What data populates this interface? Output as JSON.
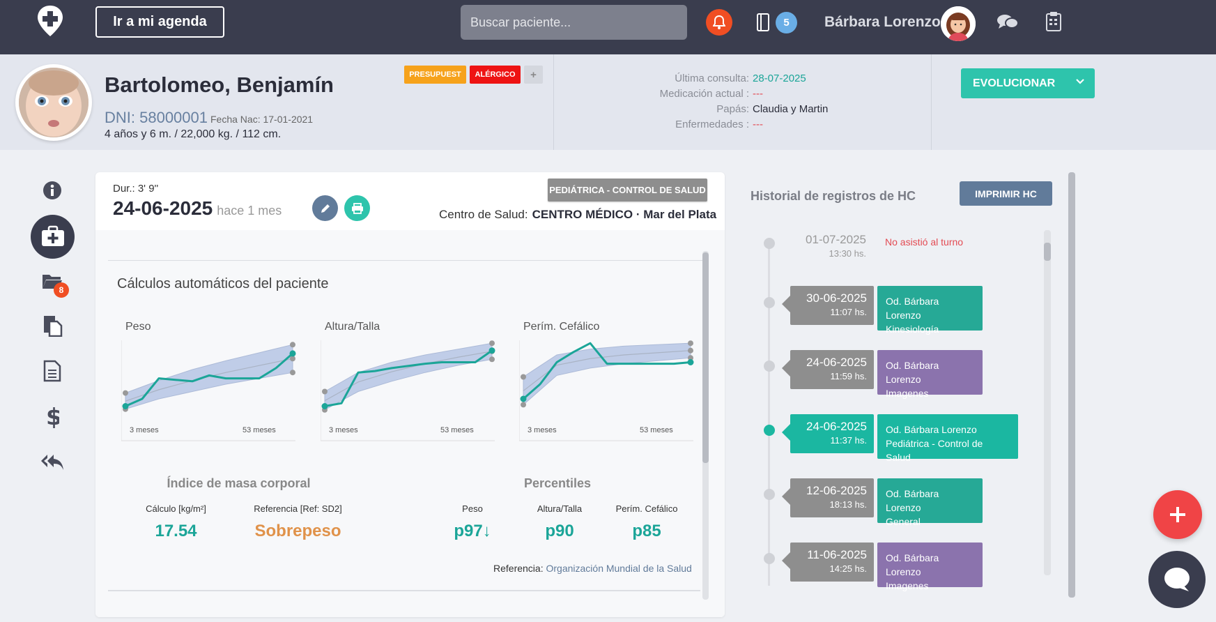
{
  "topbar": {
    "agenda_label": "Ir a mi agenda",
    "search_placeholder": "Buscar paciente...",
    "notif_count": "5",
    "user_name": "Bárbara Lorenzo"
  },
  "patient": {
    "name": "Bartolomeo, Benjamín",
    "dni": "DNI: 58000001",
    "birth": "Fecha Nac: 17-01-2021",
    "stats": "4 años y 6 m. / 22,000 kg. / 112 cm.",
    "tags": [
      "PRESUPUEST",
      "ALÉRGICO",
      "+"
    ],
    "info_labels": [
      "Última consulta:",
      "Medicación actual :",
      "Papás:",
      "Enfermedades :"
    ],
    "info_values": [
      "28-07-2025",
      "---",
      "Claudia y Martin",
      "---"
    ],
    "evolve_label": "EVOLUCIONAR"
  },
  "sidebar": {
    "folder_badge": "8"
  },
  "consult": {
    "duration": "Dur.: 3' 9''",
    "date": "24-06-2025",
    "ago": "hace 1 mes",
    "type_tag": "PEDIÁTRICA - CONTROL DE SALUD",
    "center_label": "Centro de Salud:",
    "center_name": "CENTRO MÉDICO · Mar del Plata",
    "calc_title": "Cálculos automáticos del paciente"
  },
  "chart_data": [
    {
      "type": "line",
      "title": "Peso",
      "x_start_label": "3 meses",
      "x_end_label": "53 meses",
      "band_low": [
        0.06,
        0.2,
        0.3,
        0.4,
        0.48,
        0.56
      ],
      "band_high": [
        0.28,
        0.45,
        0.6,
        0.72,
        0.83,
        0.94
      ],
      "series": [
        0.1,
        0.2,
        0.48,
        0.46,
        0.44,
        0.52,
        0.48,
        0.48,
        0.48,
        0.62,
        0.82
      ]
    },
    {
      "type": "line",
      "title": "Altura/Talla",
      "x_start_label": "3 meses",
      "x_end_label": "53 meses",
      "band_low": [
        0.05,
        0.3,
        0.44,
        0.56,
        0.66,
        0.74
      ],
      "band_high": [
        0.3,
        0.56,
        0.7,
        0.8,
        0.88,
        0.96
      ],
      "series": [
        0.1,
        0.14,
        0.56,
        0.58,
        0.62,
        0.65,
        0.68,
        0.7,
        0.7,
        0.7,
        0.86
      ]
    },
    {
      "type": "line",
      "title": "Perím. Cefálico",
      "x_start_label": "3 meses",
      "x_end_label": "53 meses",
      "band_low": [
        0.12,
        0.52,
        0.62,
        0.68,
        0.72,
        0.76
      ],
      "band_high": [
        0.5,
        0.8,
        0.88,
        0.92,
        0.94,
        0.96
      ],
      "series": [
        0.2,
        0.4,
        0.7,
        0.84,
        0.96,
        0.68,
        0.68,
        0.68,
        0.68,
        0.68,
        0.7
      ]
    }
  ],
  "imc": {
    "title": "Índice de masa corporal",
    "calc_label": "Cálculo [kg/m²]",
    "calc_value": "17.54",
    "ref_label": "Referencia [Ref: SD2]",
    "ref_value": "Sobrepeso"
  },
  "percentiles": {
    "title": "Percentiles",
    "labels": [
      "Peso",
      "Altura/Talla",
      "Perím. Cefálico"
    ],
    "values": [
      "p97↓",
      "p90",
      "p85"
    ],
    "reference_label": "Referencia:",
    "reference_source": "Organización Mundial de la Salud"
  },
  "history": {
    "title": "Historial de registros de HC",
    "print_label": "IMPRIMIR HC",
    "first": {
      "date": "01-07-2025",
      "time": "13:30 hs.",
      "note": "No asistió al turno"
    },
    "entries": [
      {
        "date": "30-06-2025",
        "time": "11:07 hs.",
        "doctor": "Od. Bárbara Lorenzo",
        "specialty": "Kinesiología"
      },
      {
        "date": "24-06-2025",
        "time": "11:59 hs.",
        "doctor": "Od. Bárbara Lorenzo",
        "specialty": "Imagenes"
      },
      {
        "date": "24-06-2025",
        "time": "11:37 hs.",
        "doctor": "Od. Bárbara Lorenzo",
        "specialty": "Pediátrica - Control de Salud"
      },
      {
        "date": "12-06-2025",
        "time": "18:13 hs.",
        "doctor": "Od. Bárbara Lorenzo",
        "specialty": "General"
      },
      {
        "date": "11-06-2025",
        "time": "14:25 hs.",
        "doctor": "Od. Bárbara Lorenzo",
        "specialty": "Imagenes"
      }
    ]
  },
  "colors": {
    "teal": "#1ba598",
    "overweight": "#e0924a",
    "band": "#b7c6e6"
  }
}
